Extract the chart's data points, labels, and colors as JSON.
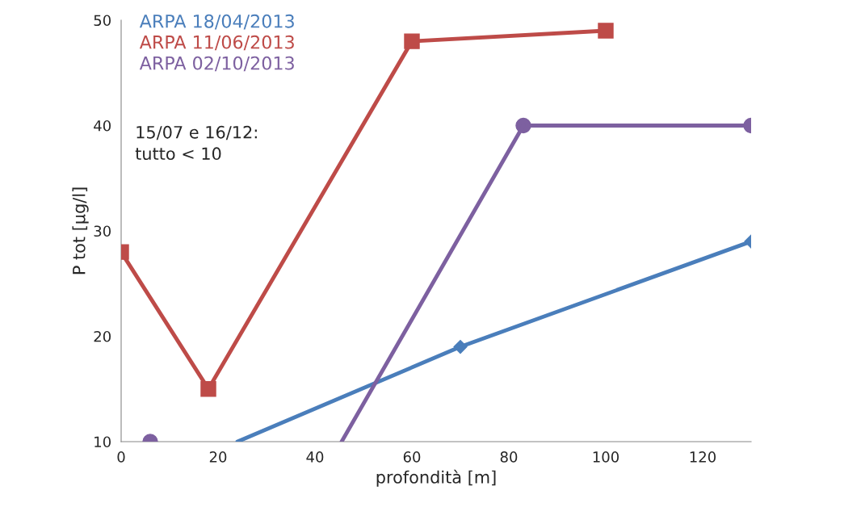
{
  "chart_data": {
    "type": "line",
    "xlabel": "profondità [m]",
    "ylabel": "P tot [µg/l]",
    "series": [
      {
        "name": "ARPA 18/04/2013",
        "color": "#4a7ebb",
        "marker": "diamond",
        "x": [
          70,
          130
        ],
        "values": [
          19,
          29
        ]
      },
      {
        "color": "#4a7ebb",
        "marker": "none",
        "x": [
          24,
          70
        ],
        "values": [
          10,
          19
        ]
      },
      {
        "name": "ARPA 11/06/2013",
        "color": "#be4b48",
        "marker": "square",
        "x": [
          0,
          18,
          60,
          100
        ],
        "values": [
          28,
          15,
          48,
          49
        ]
      },
      {
        "name": "ARPA 02/10/2013",
        "color": "#7d60a0",
        "marker": "circle",
        "x": [
          6,
          45.5,
          83,
          130
        ],
        "values": [
          10,
          null,
          40,
          40
        ]
      },
      {
        "color": "#7d60a0",
        "marker": "none",
        "x": [
          45.5,
          83
        ],
        "values": [
          10,
          40
        ]
      }
    ],
    "annotations": [
      "15/07 e 16/12:\ntutto < 10"
    ],
    "xlim": [
      0,
      130
    ],
    "xticks": [
      0,
      20,
      40,
      60,
      80,
      100,
      120
    ],
    "ylim": [
      10,
      50
    ],
    "yticks": [
      10,
      20,
      30,
      40,
      50
    ],
    "grid": false,
    "legend": "top left"
  }
}
